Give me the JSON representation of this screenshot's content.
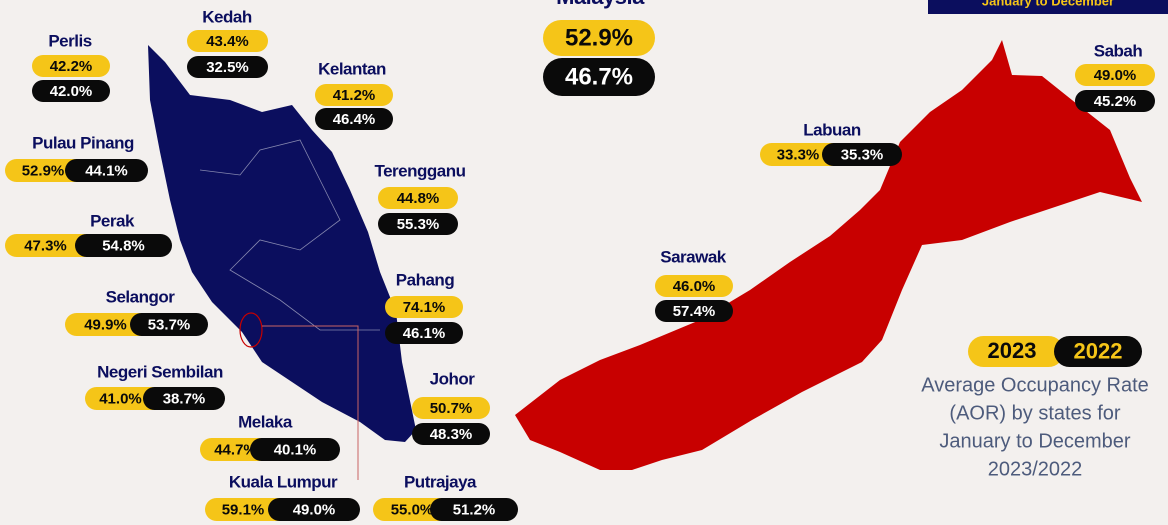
{
  "header": {
    "title": "Malaysia",
    "badge": "January to December"
  },
  "national": {
    "aor_2023": "52.9%",
    "aor_2022": "46.7%"
  },
  "states": [
    {
      "name": "Perlis",
      "aor_2023": "42.2%",
      "aor_2022": "42.0%"
    },
    {
      "name": "Kedah",
      "aor_2023": "43.4%",
      "aor_2022": "32.5%"
    },
    {
      "name": "Kelantan",
      "aor_2023": "41.2%",
      "aor_2022": "46.4%"
    },
    {
      "name": "Pulau Pinang",
      "aor_2023": "52.9%",
      "aor_2022": "44.1%"
    },
    {
      "name": "Terengganu",
      "aor_2023": "44.8%",
      "aor_2022": "55.3%"
    },
    {
      "name": "Perak",
      "aor_2023": "47.3%",
      "aor_2022": "54.8%"
    },
    {
      "name": "Pahang",
      "aor_2023": "74.1%",
      "aor_2022": "46.1%"
    },
    {
      "name": "Selangor",
      "aor_2023": "49.9%",
      "aor_2022": "53.7%"
    },
    {
      "name": "Johor",
      "aor_2023": "50.7%",
      "aor_2022": "48.3%"
    },
    {
      "name": "Negeri Sembilan",
      "aor_2023": "41.0%",
      "aor_2022": "38.7%"
    },
    {
      "name": "Melaka",
      "aor_2023": "44.7%",
      "aor_2022": "40.1%"
    },
    {
      "name": "Kuala Lumpur",
      "aor_2023": "59.1%",
      "aor_2022": "49.0%"
    },
    {
      "name": "Putrajaya",
      "aor_2023": "55.0%",
      "aor_2022": "51.2%"
    },
    {
      "name": "Labuan",
      "aor_2023": "33.3%",
      "aor_2022": "35.3%"
    },
    {
      "name": "Sarawak",
      "aor_2023": "46.0%",
      "aor_2022": "57.4%"
    },
    {
      "name": "Sabah",
      "aor_2023": "49.0%",
      "aor_2022": "45.2%"
    }
  ],
  "legend": {
    "year_a": "2023",
    "year_b": "2022"
  },
  "description": [
    "Average Occupancy Rate",
    "(AOR) by states for",
    "January to December",
    "2023/2022"
  ]
}
